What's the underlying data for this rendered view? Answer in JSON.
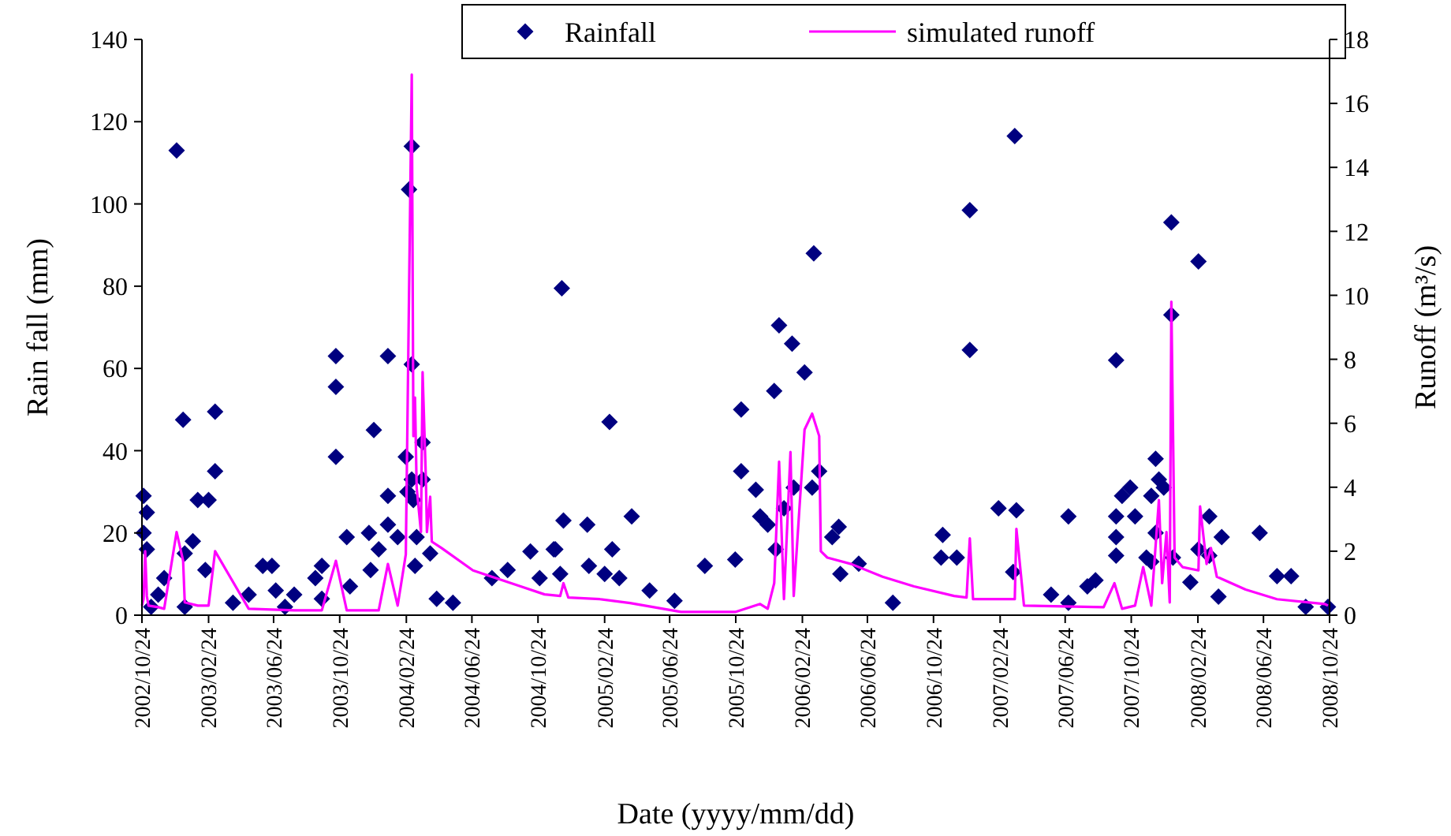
{
  "chart_data": {
    "type": "scatter",
    "xlabel": "Date (yyyy/mm/dd)",
    "ylabel": "Rain fall (mm)",
    "y2label": "Runoff (m³/s)",
    "legend": "top right",
    "grid": false,
    "xlim": [
      "2002-10-24",
      "2008-10-24"
    ],
    "xticks": [
      {
        "value": "2002-10-24",
        "label": "2002/10/24"
      },
      {
        "value": "2003-02-24",
        "label": "2003/02/24"
      },
      {
        "value": "2003-06-24",
        "label": "2003/06/24"
      },
      {
        "value": "2003-10-24",
        "label": "2003/10/24"
      },
      {
        "value": "2004-02-24",
        "label": "2004/02/24"
      },
      {
        "value": "2004-06-24",
        "label": "2004/06/24"
      },
      {
        "value": "2004-10-24",
        "label": "2004/10/24"
      },
      {
        "value": "2005-02-24",
        "label": "2005/02/24"
      },
      {
        "value": "2005-06-24",
        "label": "2005/06/24"
      },
      {
        "value": "2005-10-24",
        "label": "2005/10/24"
      },
      {
        "value": "2006-02-24",
        "label": "2006/02/24"
      },
      {
        "value": "2006-06-24",
        "label": "2006/06/24"
      },
      {
        "value": "2006-10-24",
        "label": "2006/10/24"
      },
      {
        "value": "2007-02-24",
        "label": "2007/02/24"
      },
      {
        "value": "2007-06-24",
        "label": "2007/06/24"
      },
      {
        "value": "2007-10-24",
        "label": "2007/10/24"
      },
      {
        "value": "2008-02-24",
        "label": "2008/02/24"
      },
      {
        "value": "2008-06-24",
        "label": "2008/06/24"
      },
      {
        "value": "2008-10-24",
        "label": "2008/10/24"
      }
    ],
    "ylim": [
      0,
      140
    ],
    "yticks": [
      0,
      20,
      40,
      60,
      80,
      100,
      120,
      140
    ],
    "y2lim": [
      0,
      18
    ],
    "y2ticks": [
      0,
      2,
      4,
      6,
      8,
      10,
      12,
      14,
      16,
      18
    ],
    "series": [
      {
        "name": "Rainfall",
        "marker": "diamond",
        "color": "#000080",
        "x": [
          "2002-10-27",
          "2002-10-27",
          "2002-11-02",
          "2002-11-02",
          "2002-11-10",
          "2002-11-23",
          "2002-12-04",
          "2002-12-27",
          "2003-01-08",
          "2003-01-11",
          "2003-01-11",
          "2003-01-26",
          "2003-02-04",
          "2003-02-18",
          "2003-02-24",
          "2003-03-08",
          "2003-03-08",
          "2003-04-10",
          "2003-05-09",
          "2003-06-04",
          "2003-06-21",
          "2003-06-28",
          "2003-07-15",
          "2003-08-01",
          "2003-09-09",
          "2003-09-21",
          "2003-09-21",
          "2003-10-17",
          "2003-10-17",
          "2003-10-17",
          "2003-11-06",
          "2003-11-12",
          "2003-12-17",
          "2003-12-20",
          "2003-12-26",
          "2004-01-04",
          "2004-01-21",
          "2004-01-21",
          "2004-01-21",
          "2004-02-08",
          "2004-02-23",
          "2004-02-26",
          "2004-02-29",
          "2004-03-05",
          "2004-03-05",
          "2004-03-05",
          "2004-03-08",
          "2004-03-11",
          "2004-03-14",
          "2004-03-25",
          "2004-03-25",
          "2004-04-08",
          "2004-04-20",
          "2004-05-20",
          "2004-07-31",
          "2004-08-29",
          "2004-10-10",
          "2004-10-27",
          "2004-11-22",
          "2004-11-25",
          "2004-12-04",
          "2004-12-07",
          "2004-12-10",
          "2005-01-23",
          "2005-01-26",
          "2005-02-24",
          "2005-03-05",
          "2005-03-10",
          "2005-03-23",
          "2005-04-15",
          "2005-05-18",
          "2005-07-03",
          "2005-08-28",
          "2005-10-23",
          "2005-11-03",
          "2005-11-03",
          "2005-11-30",
          "2005-12-08",
          "2005-12-22",
          "2006-01-03",
          "2006-01-06",
          "2006-01-12",
          "2006-01-21",
          "2006-02-05",
          "2006-02-08",
          "2006-02-28",
          "2006-03-14",
          "2006-03-17",
          "2006-03-27",
          "2006-04-20",
          "2006-05-02",
          "2006-05-05",
          "2006-06-08",
          "2006-08-10",
          "2006-11-07",
          "2006-11-10",
          "2006-12-06",
          "2006-12-30",
          "2006-12-30",
          "2007-02-21",
          "2007-03-20",
          "2007-03-23",
          "2007-03-26",
          "2007-05-29",
          "2007-06-30",
          "2007-06-30",
          "2007-08-04",
          "2007-08-19",
          "2007-09-26",
          "2007-09-26",
          "2007-09-26",
          "2007-09-26",
          "2007-10-07",
          "2007-10-22",
          "2007-10-31",
          "2007-11-21",
          "2007-11-30",
          "2007-11-30",
          "2007-12-08",
          "2007-12-08",
          "2007-12-14",
          "2007-12-23",
          "2008-01-06",
          "2008-01-06",
          "2008-01-09",
          "2008-02-10",
          "2008-02-25",
          "2008-02-25",
          "2008-03-16",
          "2008-03-16",
          "2008-04-02",
          "2008-04-08",
          "2008-06-17",
          "2008-07-19",
          "2008-08-14",
          "2008-09-10",
          "2008-10-21"
        ],
        "values": [
          29,
          20,
          25,
          16,
          2,
          5,
          9,
          113,
          47.5,
          15,
          2,
          18,
          28,
          11,
          28,
          49.5,
          35,
          3,
          5,
          12,
          12,
          6,
          2,
          5,
          9,
          12,
          4,
          63,
          55.5,
          38.5,
          19,
          7,
          20,
          11,
          45,
          16,
          63,
          29,
          22,
          19,
          38.5,
          30,
          103.5,
          114,
          61,
          33,
          28,
          12,
          19,
          42,
          33,
          15,
          4,
          3,
          9,
          11,
          15.5,
          9,
          16,
          16,
          10,
          79.5,
          23,
          22,
          12,
          10,
          47,
          16,
          9,
          24,
          6,
          3.5,
          12,
          13.5,
          50,
          35,
          30.5,
          24,
          22,
          54.5,
          16,
          70.5,
          26,
          66,
          31,
          59,
          31,
          88,
          35,
          19,
          21.5,
          10,
          12.5,
          3,
          14,
          19.5,
          14,
          98.5,
          64.5,
          26,
          10.5,
          116.5,
          25.5,
          5,
          24,
          3,
          7,
          8.5,
          62,
          24,
          19,
          14.5,
          29,
          31,
          24,
          14,
          29,
          13,
          38,
          20,
          33,
          31,
          95.5,
          73,
          14,
          8,
          86,
          16,
          24,
          14.5,
          4.5,
          19,
          20,
          9.5,
          9.5,
          2,
          2
        ]
      },
      {
        "name": "simulated runoff",
        "type": "line",
        "axis": "y2",
        "marker": "none",
        "line_style": "solid",
        "color": "#ff00ff",
        "x": [
          "2002-10-24",
          "2002-10-27",
          "2002-10-30",
          "2002-11-02",
          "2002-11-05",
          "2002-11-23",
          "2002-12-04",
          "2002-12-27",
          "2003-01-08",
          "2003-01-11",
          "2003-02-04",
          "2003-02-24",
          "2003-03-08",
          "2003-05-09",
          "2003-08-01",
          "2003-09-21",
          "2003-10-17",
          "2003-11-06",
          "2004-01-04",
          "2004-01-21",
          "2004-02-08",
          "2004-02-23",
          "2004-03-05",
          "2004-03-08",
          "2004-03-11",
          "2004-03-14",
          "2004-03-22",
          "2004-03-25",
          "2004-03-31",
          "2004-04-02",
          "2004-04-08",
          "2004-04-11",
          "2004-04-29",
          "2004-06-26",
          "2004-09-22",
          "2004-11-05",
          "2004-12-04",
          "2004-12-10",
          "2004-12-19",
          "2005-02-15",
          "2005-04-12",
          "2005-07-15",
          "2005-10-23",
          "2005-12-08",
          "2005-12-22",
          "2006-01-03",
          "2006-01-12",
          "2006-01-21",
          "2006-02-02",
          "2006-02-08",
          "2006-02-28",
          "2006-03-14",
          "2006-03-27",
          "2006-03-30",
          "2006-04-11",
          "2006-05-25",
          "2006-07-22",
          "2006-09-18",
          "2006-12-01",
          "2006-12-24",
          "2006-12-30",
          "2007-01-05",
          "2007-03-14",
          "2007-03-23",
          "2007-03-26",
          "2007-04-09",
          "2007-09-03",
          "2007-09-23",
          "2007-10-07",
          "2007-10-31",
          "2007-11-15",
          "2007-11-30",
          "2007-12-14",
          "2007-12-20",
          "2007-12-28",
          "2008-01-03",
          "2008-01-06",
          "2008-01-12",
          "2008-01-27",
          "2008-02-25",
          "2008-02-28",
          "2008-03-11",
          "2008-03-19",
          "2008-03-30",
          "2008-05-22",
          "2008-07-19",
          "2008-10-15",
          "2008-10-21"
        ],
        "values": [
          0.3,
          0.5,
          2.0,
          0.6,
          0.3,
          0.25,
          0.2,
          2.6,
          1.7,
          0.4,
          0.3,
          0.3,
          2.0,
          0.2,
          0.15,
          0.15,
          1.7,
          0.15,
          0.15,
          1.6,
          0.3,
          1.9,
          16.9,
          5.6,
          6.8,
          4.0,
          2.6,
          7.6,
          4.3,
          2.6,
          3.7,
          2.3,
          2.1,
          1.4,
          0.9,
          0.65,
          0.6,
          1.0,
          0.55,
          0.5,
          0.38,
          0.1,
          0.1,
          0.35,
          0.2,
          1.0,
          4.8,
          0.5,
          5.1,
          0.6,
          5.8,
          6.3,
          5.6,
          2.0,
          1.8,
          1.6,
          1.2,
          0.9,
          0.6,
          0.55,
          2.4,
          0.5,
          0.5,
          0.5,
          2.7,
          0.3,
          0.25,
          1.0,
          0.2,
          0.3,
          1.5,
          0.3,
          3.6,
          1.0,
          2.6,
          0.4,
          9.8,
          1.8,
          1.5,
          1.4,
          3.4,
          1.6,
          2.1,
          1.2,
          0.8,
          0.5,
          0.35,
          0.3
        ]
      }
    ]
  }
}
